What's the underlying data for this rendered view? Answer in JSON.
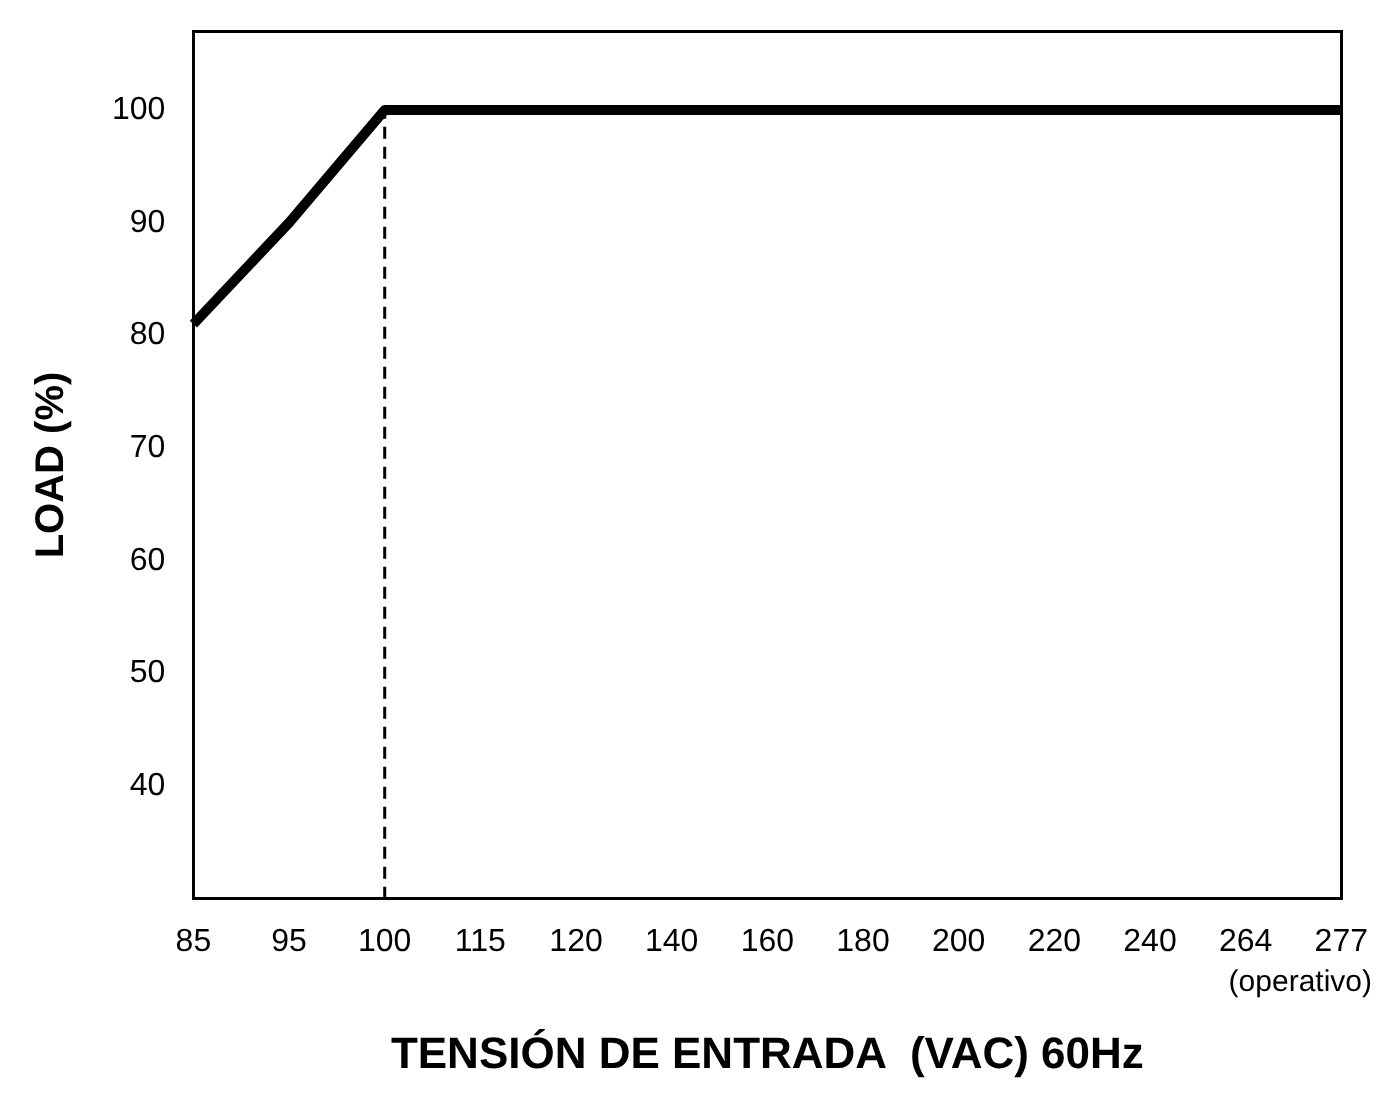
{
  "chart_data": {
    "type": "line",
    "xlabel": "TENSIÓN DE ENTRADA  (VAC) 60Hz",
    "ylabel": "LOAD (%)",
    "categories": [
      "85",
      "95",
      "100",
      "115",
      "120",
      "140",
      "160",
      "180",
      "200",
      "220",
      "240",
      "264",
      "277"
    ],
    "series": [
      {
        "color": "#000000",
        "values": [
          81,
          90,
          100,
          100,
          100,
          100,
          100,
          100,
          100,
          100,
          100,
          100,
          100
        ]
      }
    ],
    "ylim": [
      30,
      107
    ],
    "yticks": [
      40,
      50,
      60,
      70,
      80,
      90,
      100
    ],
    "ref_lines": [
      {
        "axis": "x",
        "value": "100",
        "line_style": "dashed",
        "color": "#000000"
      }
    ],
    "annotations": [
      "(operativo)"
    ],
    "grid": false,
    "legend": false,
    "marker": "none",
    "line_style": "solid"
  }
}
